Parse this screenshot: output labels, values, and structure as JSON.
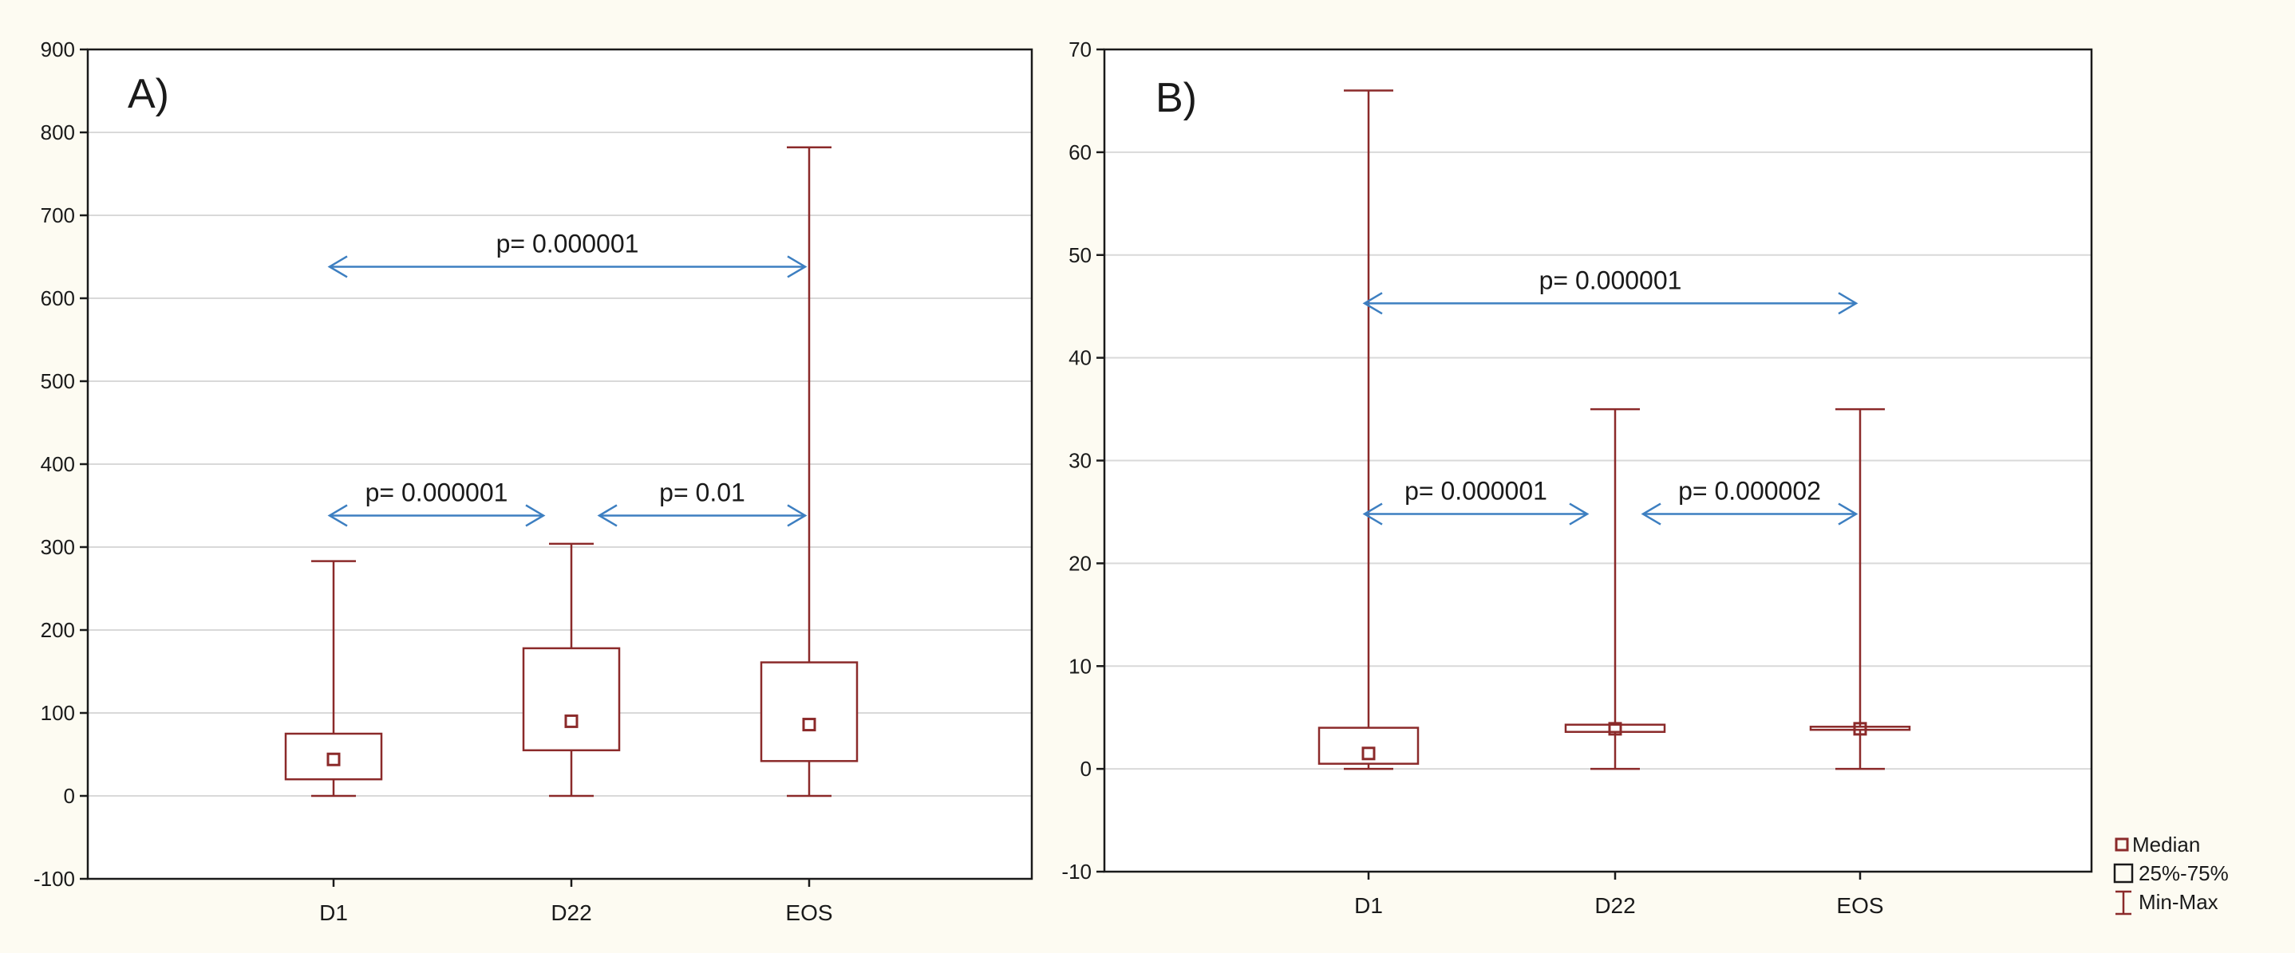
{
  "chart_data": [
    {
      "type": "box",
      "panel_label": "A)",
      "categories": [
        "D1",
        "D22",
        "EOS"
      ],
      "ylim": [
        -100,
        900
      ],
      "yticks": [
        -100,
        0,
        100,
        200,
        300,
        400,
        500,
        600,
        700,
        800,
        900
      ],
      "grid": true,
      "boxes": [
        {
          "category": "D1",
          "min": 0,
          "q1": 20,
          "median": 44,
          "q3": 75,
          "max": 283
        },
        {
          "category": "D22",
          "min": 0,
          "q1": 55,
          "median": 90,
          "q3": 178,
          "max": 304
        },
        {
          "category": "EOS",
          "min": 0,
          "q1": 42,
          "median": 86,
          "q3": 161,
          "max": 782
        }
      ],
      "annotations": [
        {
          "text": "p= 0.000001",
          "from": "D1",
          "to": "EOS",
          "y": 638
        },
        {
          "text": "p= 0.000001",
          "from": "D1",
          "to": "D22",
          "y": 338
        },
        {
          "text": "p= 0.01",
          "from": "D22",
          "to": "EOS",
          "y": 338
        }
      ]
    },
    {
      "type": "box",
      "panel_label": "B)",
      "categories": [
        "D1",
        "D22",
        "EOS"
      ],
      "ylim": [
        -10,
        70
      ],
      "yticks": [
        -10,
        0,
        10,
        20,
        30,
        40,
        50,
        60,
        70
      ],
      "grid": true,
      "legend_position": "bottom-right",
      "boxes": [
        {
          "category": "D1",
          "min": 0,
          "q1": 0.5,
          "median": 1.5,
          "q3": 4.0,
          "max": 66
        },
        {
          "category": "D22",
          "min": 0,
          "q1": 3.6,
          "median": 3.9,
          "q3": 4.3,
          "max": 35
        },
        {
          "category": "EOS",
          "min": 0,
          "q1": 3.8,
          "median": 3.9,
          "q3": 4.1,
          "max": 35
        }
      ],
      "annotations": [
        {
          "text": "p= 0.000001",
          "from": "D1",
          "to": "EOS",
          "y": 45.3
        },
        {
          "text": "p= 0.000001",
          "from": "D1",
          "to": "D22",
          "y": 24.8
        },
        {
          "text": "p= 0.000002",
          "from": "D22",
          "to": "EOS",
          "y": 24.8
        }
      ]
    }
  ],
  "legend": {
    "median_label": "Median",
    "box_label": "25%-75%",
    "range_label": "Min-Max"
  },
  "colors": {
    "box_stroke": "#8b2a2a",
    "arrow": "#3d7fc1",
    "grid": "#d9d9d9",
    "axis": "#1a1a1a",
    "text": "#1a1a1a",
    "background_panel": "#ffffff",
    "background_outer": "#fdfbf2"
  }
}
